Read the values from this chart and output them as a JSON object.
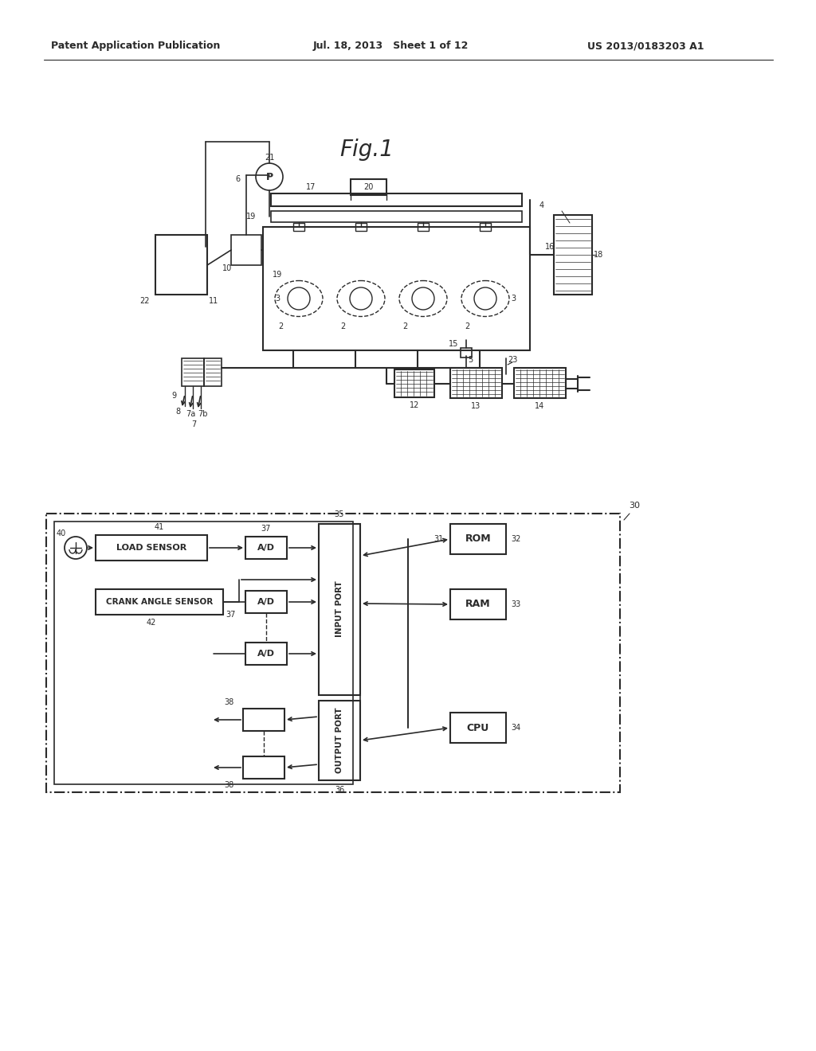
{
  "bg_color": "#ffffff",
  "line_color": "#2a2a2a",
  "header_left": "Patent Application Publication",
  "header_mid": "Jul. 18, 2013   Sheet 1 of 12",
  "header_right": "US 2013/0183203 A1",
  "fig_title": "Fig.1"
}
